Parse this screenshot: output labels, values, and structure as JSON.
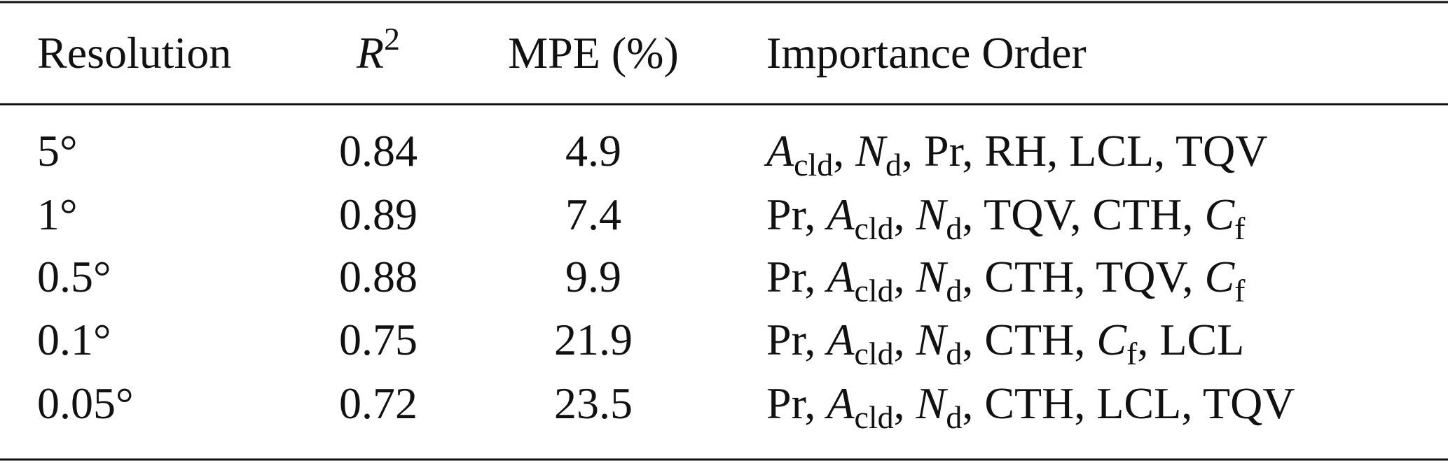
{
  "table": {
    "separator": ", ",
    "header": {
      "resolution": "Resolution",
      "r2": {
        "symbol": "R",
        "superscript": "2"
      },
      "mpe": "MPE (%)",
      "importance": "Importance Order"
    },
    "rows": [
      {
        "resolution": "5°",
        "r2": "0.84",
        "mpe": "4.9",
        "importance": [
          {
            "symbol": "A",
            "subscript": "cld"
          },
          {
            "symbol": "N",
            "subscript": "d"
          },
          "Pr",
          "RH",
          "LCL",
          "TQV"
        ]
      },
      {
        "resolution": "1°",
        "r2": "0.89",
        "mpe": "7.4",
        "importance": [
          "Pr",
          {
            "symbol": "A",
            "subscript": "cld"
          },
          {
            "symbol": "N",
            "subscript": "d"
          },
          "TQV",
          "CTH",
          {
            "symbol": "C",
            "subscript": "f"
          }
        ]
      },
      {
        "resolution": "0.5°",
        "r2": "0.88",
        "mpe": "9.9",
        "importance": [
          "Pr",
          {
            "symbol": "A",
            "subscript": "cld"
          },
          {
            "symbol": "N",
            "subscript": "d"
          },
          "CTH",
          "TQV",
          {
            "symbol": "C",
            "subscript": "f"
          }
        ]
      },
      {
        "resolution": "0.1°",
        "r2": "0.75",
        "mpe": "21.9",
        "importance": [
          "Pr",
          {
            "symbol": "A",
            "subscript": "cld"
          },
          {
            "symbol": "N",
            "subscript": "d"
          },
          "CTH",
          {
            "symbol": "C",
            "subscript": "f"
          },
          "LCL"
        ]
      },
      {
        "resolution": "0.05°",
        "r2": "0.72",
        "mpe": "23.5",
        "importance": [
          "Pr",
          {
            "symbol": "A",
            "subscript": "cld"
          },
          {
            "symbol": "N",
            "subscript": "d"
          },
          "CTH",
          "LCL",
          "TQV"
        ]
      }
    ]
  }
}
